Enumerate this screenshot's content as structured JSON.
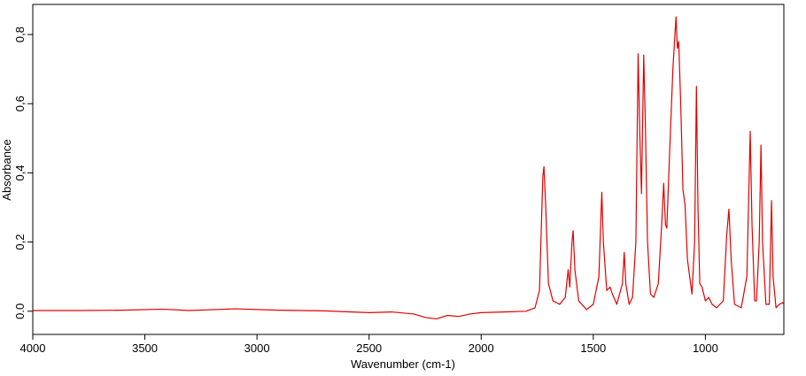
{
  "chart_data": {
    "type": "line",
    "x_label": "Wavenumber (cm-1)",
    "y_label": "Absorbance",
    "x": [
      4000,
      3800,
      3600,
      3420,
      3300,
      3100,
      2900,
      2700,
      2500,
      2400,
      2300,
      2250,
      2200,
      2150,
      2100,
      2050,
      2000,
      1900,
      1800,
      1760,
      1740,
      1725,
      1720,
      1712,
      1700,
      1680,
      1650,
      1625,
      1612,
      1605,
      1595,
      1590,
      1582,
      1565,
      1530,
      1500,
      1475,
      1462,
      1455,
      1440,
      1425,
      1415,
      1395,
      1370,
      1362,
      1355,
      1340,
      1325,
      1310,
      1300,
      1292,
      1285,
      1275,
      1268,
      1258,
      1245,
      1230,
      1210,
      1195,
      1186,
      1178,
      1172,
      1160,
      1145,
      1131,
      1125,
      1119,
      1110,
      1100,
      1091,
      1080,
      1060,
      1048,
      1040,
      1033,
      1025,
      1015,
      1000,
      985,
      970,
      950,
      920,
      905,
      895,
      885,
      870,
      840,
      815,
      800,
      792,
      780,
      772,
      760,
      752,
      745,
      730,
      715,
      705,
      698,
      685,
      670,
      655,
      650
    ],
    "values": [
      0.002,
      0.002,
      0.003,
      0.006,
      0.002,
      0.007,
      0.003,
      0.001,
      -0.004,
      -0.002,
      -0.008,
      -0.018,
      -0.022,
      -0.012,
      -0.015,
      -0.008,
      -0.004,
      -0.002,
      0.0,
      0.01,
      0.06,
      0.39,
      0.418,
      0.3,
      0.08,
      0.03,
      0.02,
      0.04,
      0.12,
      0.07,
      0.2,
      0.233,
      0.12,
      0.03,
      0.005,
      0.02,
      0.1,
      0.344,
      0.2,
      0.06,
      0.07,
      0.05,
      0.02,
      0.08,
      0.17,
      0.08,
      0.02,
      0.04,
      0.2,
      0.744,
      0.5,
      0.34,
      0.741,
      0.55,
      0.2,
      0.05,
      0.04,
      0.08,
      0.25,
      0.37,
      0.25,
      0.24,
      0.45,
      0.7,
      0.851,
      0.76,
      0.78,
      0.6,
      0.35,
      0.31,
      0.15,
      0.05,
      0.2,
      0.65,
      0.3,
      0.08,
      0.07,
      0.03,
      0.04,
      0.02,
      0.01,
      0.03,
      0.22,
      0.295,
      0.15,
      0.02,
      0.01,
      0.1,
      0.52,
      0.25,
      0.03,
      0.03,
      0.2,
      0.48,
      0.2,
      0.02,
      0.02,
      0.32,
      0.1,
      0.01,
      0.02,
      0.025,
      0.02
    ],
    "color": "#e00000",
    "xlim": [
      4000,
      650
    ],
    "ylim": [
      -0.067,
      0.887
    ],
    "xticks": [
      4000,
      3500,
      3000,
      2500,
      2000,
      1500,
      1000
    ],
    "yticks": [
      {
        "value": 0,
        "label": "0.0"
      },
      {
        "value": 0.2,
        "label": "0,2"
      },
      {
        "value": 0.4,
        "label": "0,4"
      },
      {
        "value": 0.6,
        "label": "0,6"
      },
      {
        "value": 0.8,
        "label": "0,8"
      }
    ]
  }
}
